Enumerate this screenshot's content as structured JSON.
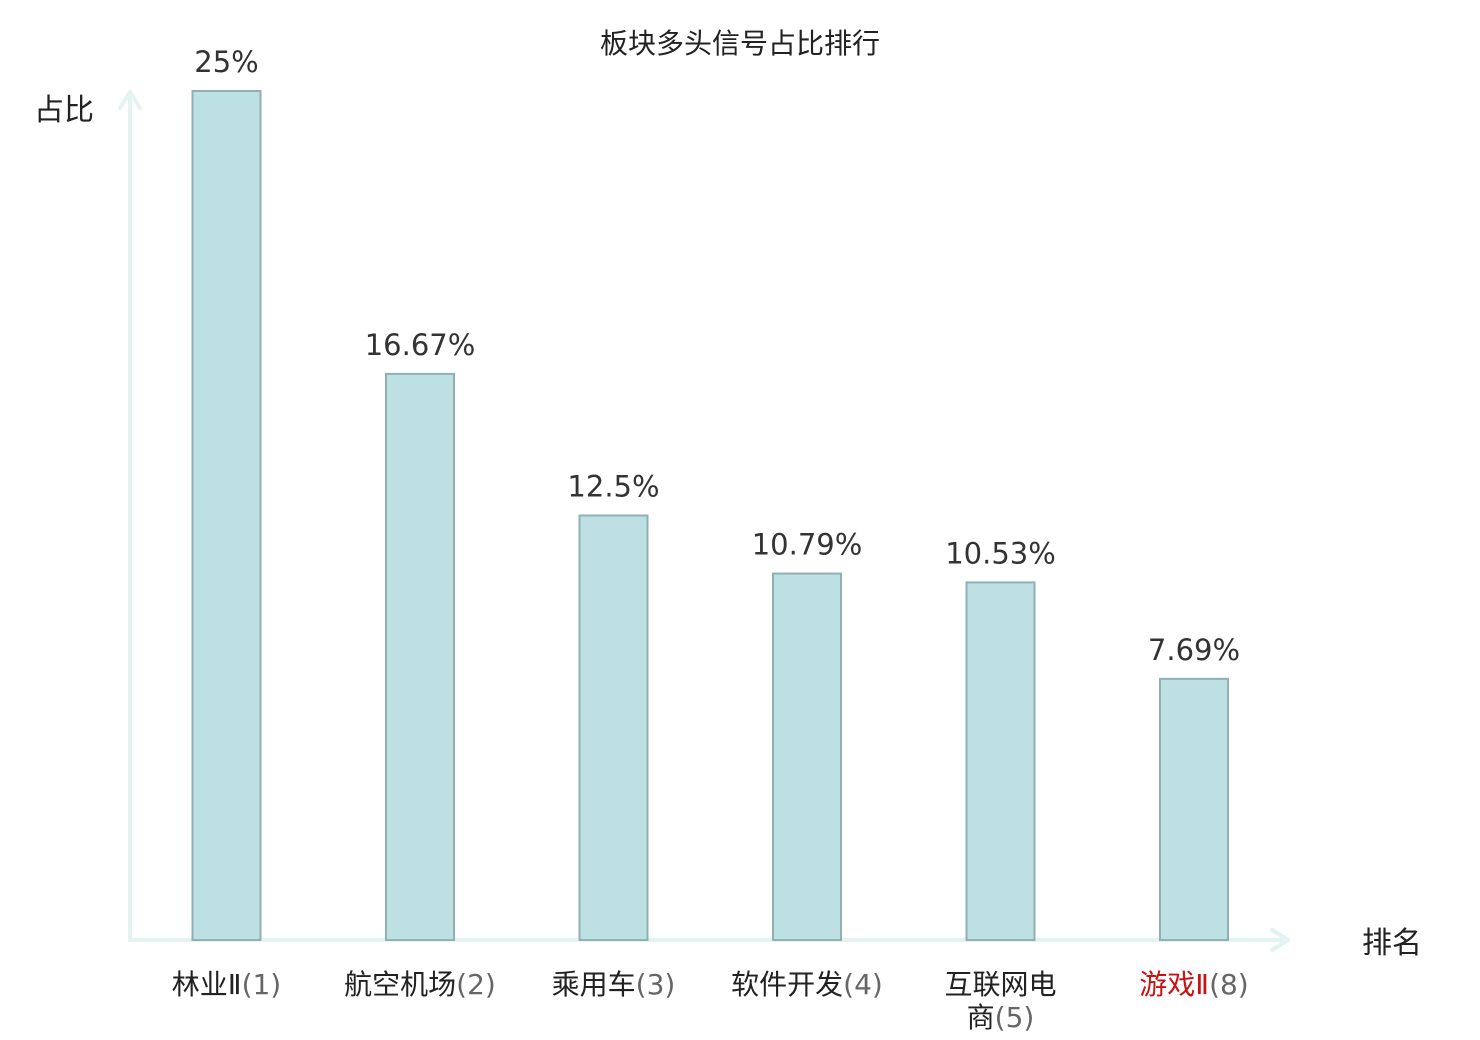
{
  "chart_data": {
    "type": "bar",
    "title": "板块多头信号占比排行",
    "ylabel": "占比",
    "xlabel": "排名",
    "categories": [
      {
        "name": "林业Ⅱ",
        "rank": "(1)",
        "name_lines": [
          "林业Ⅱ"
        ],
        "highlight": false
      },
      {
        "name": "航空机场",
        "rank": "(2)",
        "name_lines": [
          "航空机场"
        ],
        "highlight": false
      },
      {
        "name": "乘用车",
        "rank": "(3)",
        "name_lines": [
          "乘用车"
        ],
        "highlight": false
      },
      {
        "name": "软件开发",
        "rank": "(4)",
        "name_lines": [
          "软件开发"
        ],
        "highlight": false
      },
      {
        "name": "互联网电商",
        "rank": "(5)",
        "name_lines": [
          "互联网电",
          "商"
        ],
        "highlight": false
      },
      {
        "name": "游戏Ⅱ",
        "rank": "(8)",
        "name_lines": [
          "游戏Ⅱ"
        ],
        "highlight": true
      }
    ],
    "values": [
      25,
      16.67,
      12.5,
      10.79,
      10.53,
      7.69
    ],
    "value_labels": [
      "25%",
      "16.67%",
      "12.5%",
      "10.79%",
      "10.53%",
      "7.69%"
    ],
    "ylim": [
      0,
      25
    ],
    "grid": false,
    "colors": {
      "bar_fill": "#bde0e3",
      "bar_stroke": "#8fb0b4",
      "axis": "#e2f3f1",
      "highlight_label": "#cc1111",
      "label": "#222222"
    }
  }
}
